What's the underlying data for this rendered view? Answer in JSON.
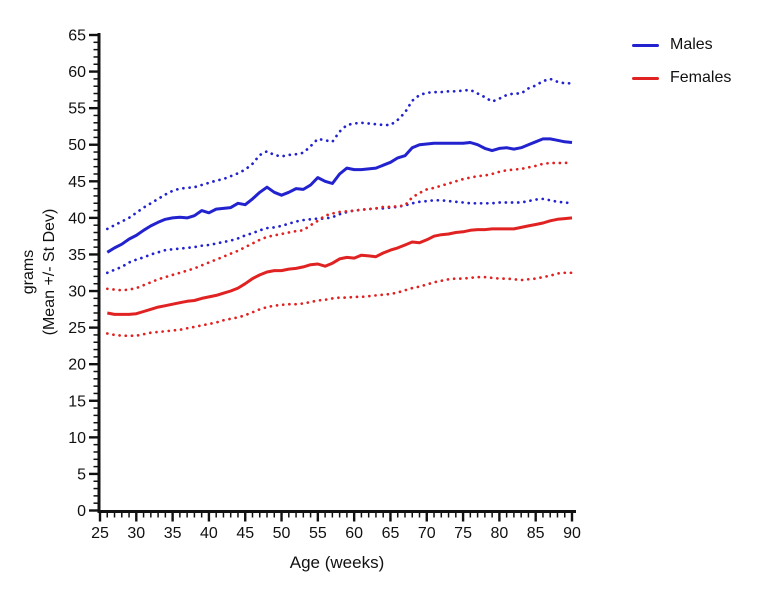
{
  "axes": {
    "x_title": "Age (weeks)",
    "y_title_line1": "grams",
    "y_title_line2": "(Mean +/- St Dev)"
  },
  "legend": {
    "items": [
      {
        "label": "Males",
        "color": "#2222cf"
      },
      {
        "label": "Females",
        "color": "#e02322"
      }
    ]
  },
  "chart_data": {
    "type": "line",
    "title": "",
    "xlabel": "Age (weeks)",
    "ylabel": "grams (Mean +/- St Dev)",
    "xlim": [
      25,
      90
    ],
    "ylim": [
      0,
      65
    ],
    "x_ticks": [
      25,
      30,
      35,
      40,
      45,
      50,
      55,
      60,
      65,
      70,
      75,
      80,
      85,
      90
    ],
    "y_ticks": [
      0,
      5,
      10,
      15,
      20,
      25,
      30,
      35,
      40,
      45,
      50,
      55,
      60,
      65
    ],
    "x_minor_step": 1,
    "y_minor_step": 1,
    "grid": false,
    "legend_position": "top-right",
    "x": [
      26,
      27,
      28,
      29,
      30,
      31,
      32,
      33,
      34,
      35,
      36,
      37,
      38,
      39,
      40,
      41,
      42,
      43,
      44,
      45,
      46,
      47,
      48,
      49,
      50,
      51,
      52,
      53,
      54,
      55,
      56,
      57,
      58,
      59,
      60,
      61,
      62,
      63,
      64,
      65,
      66,
      67,
      68,
      69,
      70,
      71,
      72,
      73,
      74,
      75,
      76,
      77,
      78,
      79,
      80,
      81,
      82,
      83,
      84,
      85,
      86,
      87,
      88,
      89,
      90
    ],
    "series": [
      {
        "name": "Males mean",
        "color": "#2222cf",
        "style": "solid",
        "values": [
          35.3,
          35.9,
          36.4,
          37.1,
          37.6,
          38.3,
          38.9,
          39.4,
          39.8,
          40.0,
          40.1,
          40.0,
          40.3,
          41.0,
          40.7,
          41.2,
          41.3,
          41.4,
          42.0,
          41.8,
          42.6,
          43.5,
          44.2,
          43.5,
          43.1,
          43.5,
          44.0,
          43.9,
          44.5,
          45.5,
          45.0,
          44.7,
          46.0,
          46.8,
          46.6,
          46.6,
          46.7,
          46.8,
          47.2,
          47.6,
          48.2,
          48.5,
          49.6,
          50.0,
          50.1,
          50.2,
          50.2,
          50.2,
          50.2,
          50.2,
          50.3,
          50.0,
          49.5,
          49.2,
          49.5,
          49.6,
          49.4,
          49.6,
          50.0,
          50.4,
          50.8,
          50.8,
          50.6,
          50.4,
          50.3
        ]
      },
      {
        "name": "Males mean plus SD",
        "color": "#2222cf",
        "style": "dotted",
        "values": [
          38.5,
          39.0,
          39.5,
          40.0,
          40.7,
          41.4,
          42.0,
          42.6,
          43.2,
          43.7,
          44.0,
          44.1,
          44.2,
          44.5,
          44.8,
          45.1,
          45.3,
          45.7,
          46.1,
          46.6,
          47.4,
          48.6,
          49.1,
          48.6,
          48.4,
          48.6,
          48.7,
          48.9,
          49.8,
          50.8,
          50.6,
          50.4,
          51.8,
          52.7,
          52.9,
          53.0,
          52.9,
          52.8,
          52.7,
          52.7,
          53.4,
          54.4,
          56.0,
          56.8,
          57.1,
          57.2,
          57.2,
          57.3,
          57.3,
          57.4,
          57.5,
          57.0,
          56.5,
          55.9,
          56.3,
          56.8,
          57.0,
          57.0,
          57.7,
          58.1,
          58.7,
          59.0,
          58.6,
          58.4,
          58.4
        ]
      },
      {
        "name": "Males mean minus SD",
        "color": "#2222cf",
        "style": "dotted",
        "values": [
          32.5,
          32.9,
          33.3,
          33.9,
          34.3,
          34.6,
          35.0,
          35.3,
          35.6,
          35.7,
          35.8,
          35.9,
          36.0,
          36.2,
          36.3,
          36.5,
          36.7,
          36.9,
          37.2,
          37.6,
          37.9,
          38.3,
          38.6,
          38.7,
          38.9,
          39.2,
          39.5,
          39.7,
          39.8,
          39.9,
          39.9,
          40.1,
          40.5,
          40.8,
          41.0,
          41.1,
          41.2,
          41.3,
          41.3,
          41.4,
          41.5,
          41.7,
          42.0,
          42.2,
          42.3,
          42.4,
          42.4,
          42.3,
          42.2,
          42.1,
          42.0,
          42.0,
          42.0,
          42.0,
          42.1,
          42.1,
          42.1,
          42.1,
          42.3,
          42.5,
          42.6,
          42.4,
          42.2,
          42.1,
          42.0
        ]
      },
      {
        "name": "Females mean",
        "color": "#e02322",
        "style": "solid",
        "values": [
          27.0,
          26.8,
          26.8,
          26.8,
          26.9,
          27.2,
          27.5,
          27.8,
          28.0,
          28.2,
          28.4,
          28.6,
          28.7,
          29.0,
          29.2,
          29.4,
          29.7,
          30.0,
          30.4,
          31.0,
          31.7,
          32.2,
          32.6,
          32.8,
          32.8,
          33.0,
          33.1,
          33.3,
          33.6,
          33.7,
          33.4,
          33.8,
          34.4,
          34.6,
          34.5,
          34.9,
          34.8,
          34.7,
          35.2,
          35.6,
          35.9,
          36.3,
          36.7,
          36.6,
          37.0,
          37.5,
          37.7,
          37.8,
          38.0,
          38.1,
          38.3,
          38.4,
          38.4,
          38.5,
          38.5,
          38.5,
          38.5,
          38.7,
          38.9,
          39.1,
          39.3,
          39.6,
          39.8,
          39.9,
          40.0
        ]
      },
      {
        "name": "Females mean plus SD",
        "color": "#e02322",
        "style": "dotted",
        "values": [
          30.3,
          30.2,
          30.1,
          30.2,
          30.4,
          30.8,
          31.2,
          31.6,
          31.9,
          32.2,
          32.5,
          32.8,
          33.1,
          33.5,
          33.9,
          34.3,
          34.7,
          35.1,
          35.5,
          36.0,
          36.5,
          37.0,
          37.4,
          37.6,
          37.8,
          38.0,
          38.2,
          38.3,
          39.0,
          39.6,
          40.3,
          40.6,
          40.8,
          40.9,
          41.0,
          41.1,
          41.2,
          41.3,
          41.5,
          41.5,
          41.6,
          41.7,
          42.8,
          43.4,
          43.9,
          44.1,
          44.4,
          44.7,
          45.0,
          45.3,
          45.5,
          45.7,
          45.8,
          46.0,
          46.3,
          46.5,
          46.6,
          46.7,
          46.9,
          47.1,
          47.4,
          47.5,
          47.5,
          47.5,
          47.6
        ]
      },
      {
        "name": "Females mean minus SD",
        "color": "#e02322",
        "style": "dotted",
        "values": [
          24.2,
          24.0,
          23.9,
          23.9,
          23.9,
          24.1,
          24.3,
          24.4,
          24.5,
          24.6,
          24.7,
          24.9,
          25.1,
          25.3,
          25.5,
          25.7,
          26.0,
          26.2,
          26.4,
          26.7,
          27.1,
          27.5,
          27.8,
          28.0,
          28.1,
          28.2,
          28.2,
          28.3,
          28.5,
          28.7,
          28.8,
          29.0,
          29.1,
          29.1,
          29.2,
          29.2,
          29.3,
          29.4,
          29.5,
          29.6,
          29.8,
          30.1,
          30.4,
          30.6,
          30.9,
          31.2,
          31.4,
          31.6,
          31.7,
          31.7,
          31.8,
          31.9,
          31.9,
          31.8,
          31.7,
          31.7,
          31.6,
          31.5,
          31.6,
          31.7,
          31.9,
          32.1,
          32.4,
          32.5,
          32.5
        ]
      }
    ]
  }
}
